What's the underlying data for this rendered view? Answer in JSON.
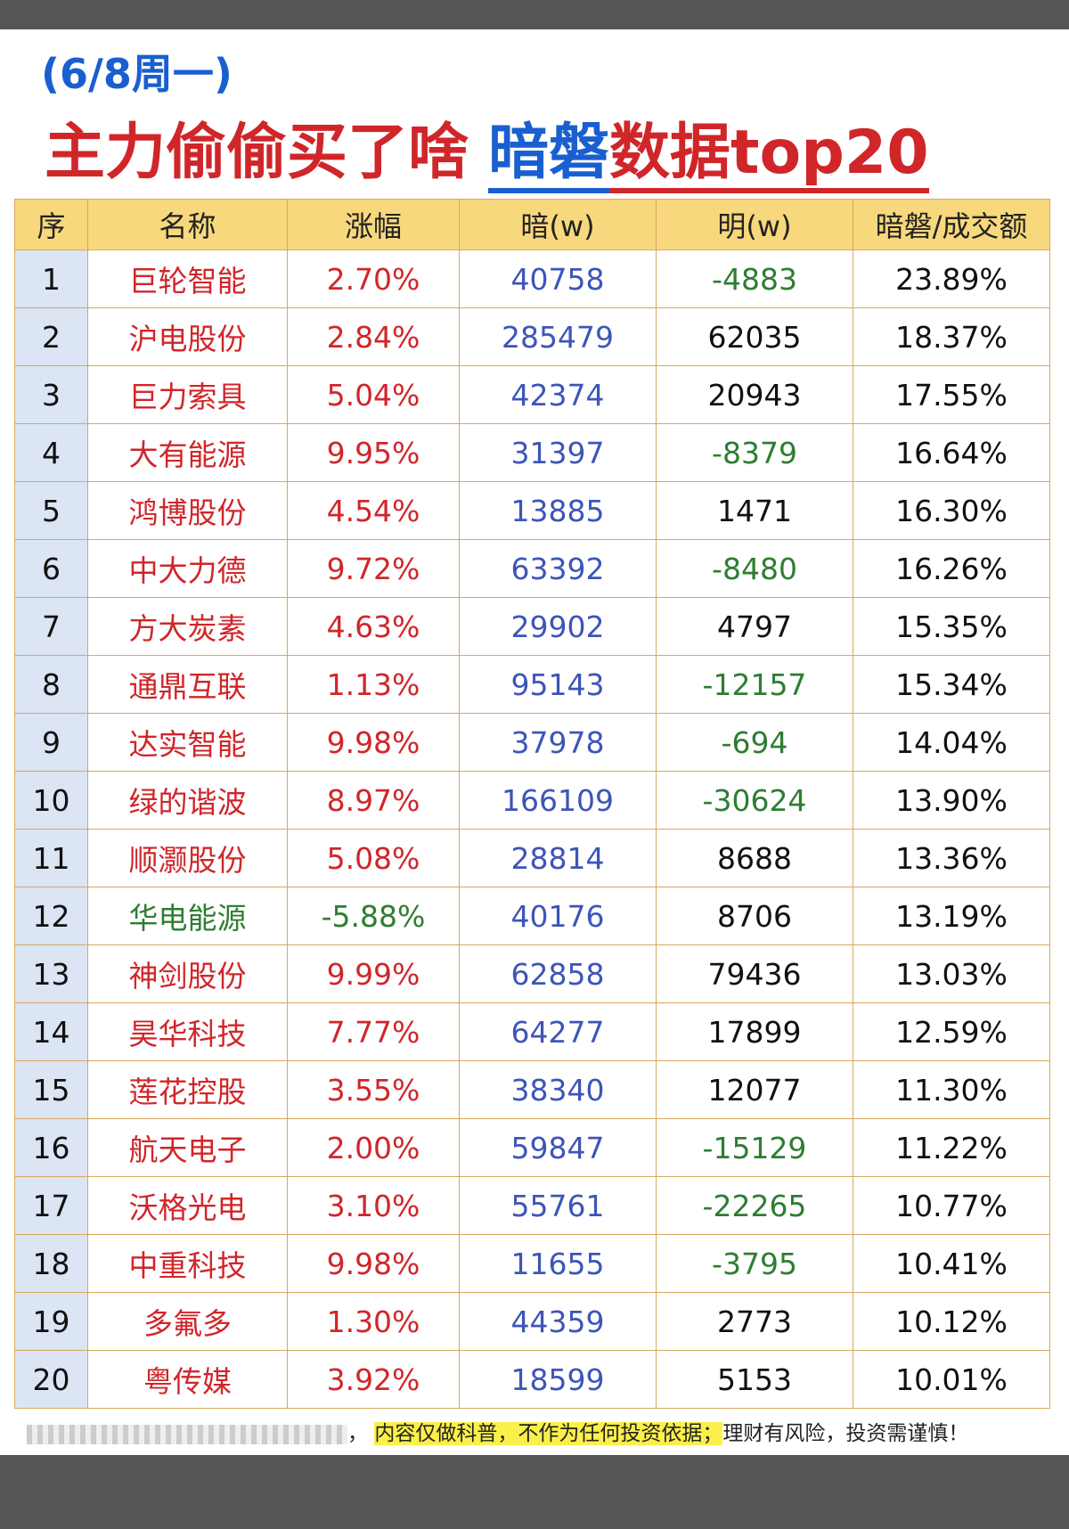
{
  "header": {
    "date": "(6/8周一)",
    "title_part1": "主力偷偷买了啥",
    "title_part2": "暗磐",
    "title_part3": "数据top20"
  },
  "table": {
    "columns": [
      "序",
      "名称",
      "涨幅",
      "暗(w)",
      "明(w)",
      "暗磐/成交额"
    ],
    "rows": [
      [
        "1",
        "巨轮智能",
        "2.70%",
        "40758",
        "-4883",
        "23.89%"
      ],
      [
        "2",
        "沪电股份",
        "2.84%",
        "285479",
        "62035",
        "18.37%"
      ],
      [
        "3",
        "巨力索具",
        "5.04%",
        "42374",
        "20943",
        "17.55%"
      ],
      [
        "4",
        "大有能源",
        "9.95%",
        "31397",
        "-8379",
        "16.64%"
      ],
      [
        "5",
        "鸿博股份",
        "4.54%",
        "13885",
        "1471",
        "16.30%"
      ],
      [
        "6",
        "中大力德",
        "9.72%",
        "63392",
        "-8480",
        "16.26%"
      ],
      [
        "7",
        "方大炭素",
        "4.63%",
        "29902",
        "4797",
        "15.35%"
      ],
      [
        "8",
        "通鼎互联",
        "1.13%",
        "95143",
        "-12157",
        "15.34%"
      ],
      [
        "9",
        "达实智能",
        "9.98%",
        "37978",
        "-694",
        "14.04%"
      ],
      [
        "10",
        "绿的谐波",
        "8.97%",
        "166109",
        "-30624",
        "13.90%"
      ],
      [
        "11",
        "顺灏股份",
        "5.08%",
        "28814",
        "8688",
        "13.36%"
      ],
      [
        "12",
        "华电能源",
        "-5.88%",
        "40176",
        "8706",
        "13.19%"
      ],
      [
        "13",
        "神剑股份",
        "9.99%",
        "62858",
        "79436",
        "13.03%"
      ],
      [
        "14",
        "昊华科技",
        "7.77%",
        "64277",
        "17899",
        "12.59%"
      ],
      [
        "15",
        "莲花控股",
        "3.55%",
        "38340",
        "12077",
        "11.30%"
      ],
      [
        "16",
        "航天电子",
        "2.00%",
        "59847",
        "-15129",
        "11.22%"
      ],
      [
        "17",
        "沃格光电",
        "3.10%",
        "55761",
        "-22265",
        "10.77%"
      ],
      [
        "18",
        "中重科技",
        "9.98%",
        "11655",
        "-3795",
        "10.41%"
      ],
      [
        "19",
        "多氟多",
        "1.30%",
        "44359",
        "2773",
        "10.12%"
      ],
      [
        "20",
        "粤传媒",
        "3.92%",
        "18599",
        "5153",
        "10.01%"
      ]
    ]
  },
  "footer": {
    "lead": "，",
    "highlight": "内容仅做科普，不作为任何投资依据；",
    "rest": "理财有风险，投资需谨慎！"
  }
}
